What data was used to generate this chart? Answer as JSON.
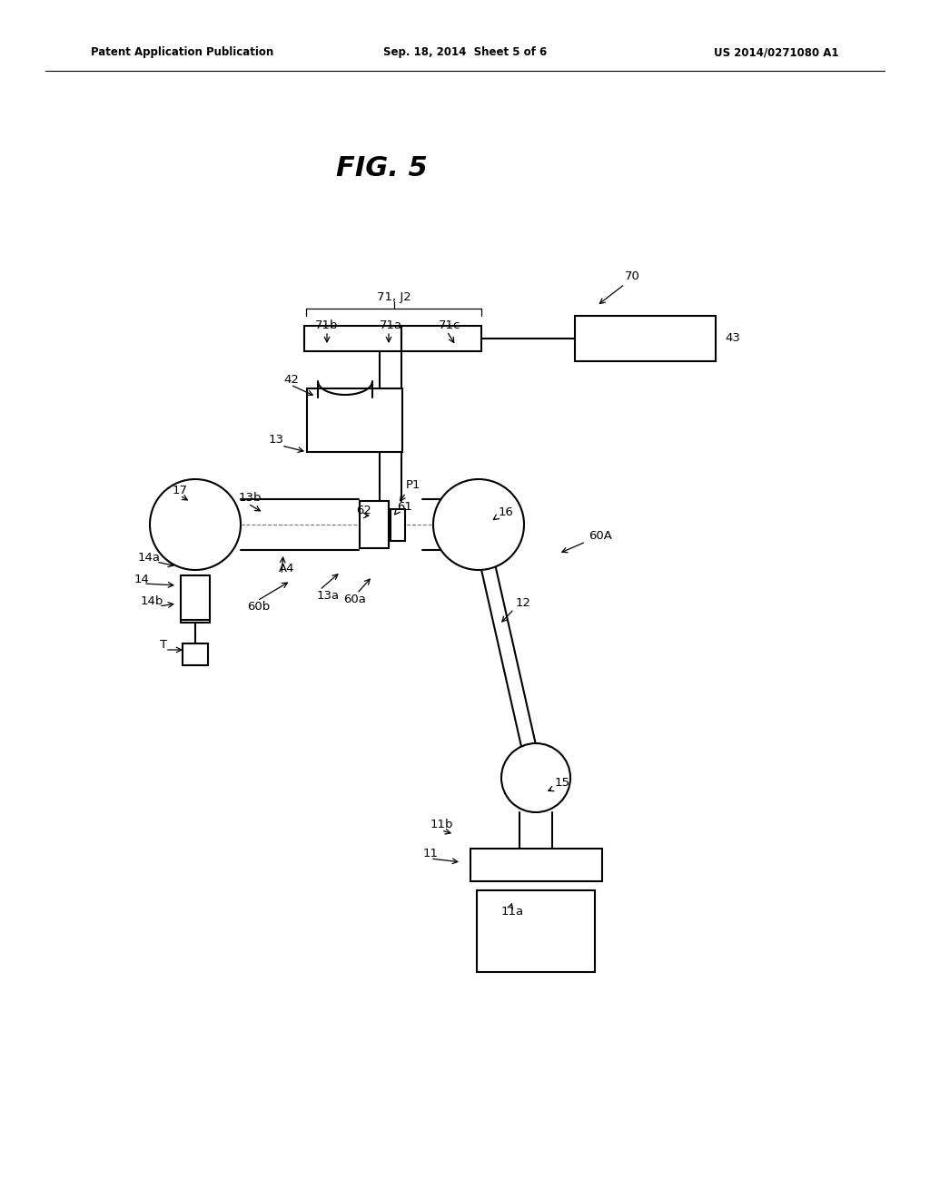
{
  "title": "FIG. 5",
  "header_left": "Patent Application Publication",
  "header_center": "Sep. 18, 2014  Sheet 5 of 6",
  "header_right": "US 2014/0271080 A1",
  "bg_color": "#ffffff",
  "line_color": "#000000"
}
